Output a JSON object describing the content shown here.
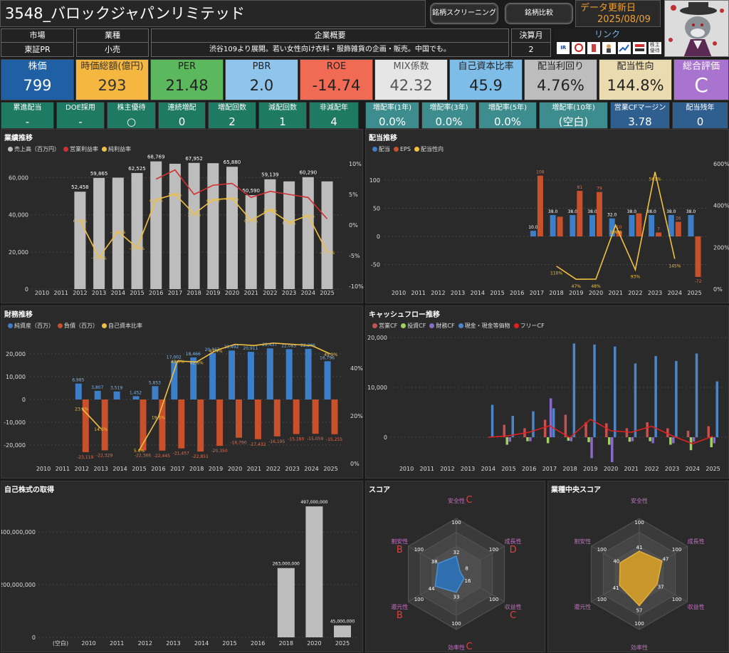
{
  "header": {
    "title": "3548_バロックジャパンリミテッド",
    "screening_button": "銘柄スクリーニング",
    "compare_button": "銘柄比較",
    "update_label": "データ更新日",
    "update_date": "2025/08/09"
  },
  "info": {
    "market_label": "市場",
    "market_value": "東証PR",
    "industry_label": "業種",
    "industry_value": "小売",
    "summary_label": "企業概要",
    "summary_value": "渋谷109より展開。若い女性向け衣料・服飾雑貨の企画・販売。中国でも。",
    "fiscal_label": "決算月",
    "fiscal_value": "2",
    "links_label": "リンク",
    "links": [
      "IR BANK",
      "Kabutan",
      "Minkabu",
      "Yahoo",
      "Kabuyoho",
      "株主優待"
    ]
  },
  "kpis": [
    {
      "label": "株価",
      "value": "799",
      "bg": "#1f5fa3",
      "fg": "#ffffff"
    },
    {
      "label": "時価総額(億円)",
      "value": "293",
      "bg": "#f5b73f",
      "fg": "#333333"
    },
    {
      "label": "PER",
      "value": "21.48",
      "bg": "#5cb85c",
      "fg": "#222222"
    },
    {
      "label": "PBR",
      "value": "2.0",
      "bg": "#8fc5ec",
      "fg": "#222222"
    },
    {
      "label": "ROE",
      "value": "-14.74",
      "bg": "#f16b54",
      "fg": "#222222"
    },
    {
      "label": "MIX係数",
      "value": "42.32",
      "bg": "#e6e6e6",
      "fg": "#555555"
    },
    {
      "label": "自己資本比率",
      "value": "45.9",
      "bg": "#7fbde9",
      "fg": "#222222"
    },
    {
      "label": "配当利回り",
      "value": "4.76%",
      "bg": "#bdbdbd",
      "fg": "#222222"
    },
    {
      "label": "配当性向",
      "value": "144.8%",
      "bg": "#eadbb0",
      "fg": "#222222"
    },
    {
      "label": "総合評価",
      "value": "C",
      "bg": "#a874cf",
      "fg": "#ffffff"
    }
  ],
  "metrics": [
    {
      "label": "累進配当",
      "value": "-",
      "bg": "#1f7a63"
    },
    {
      "label": "DOE採用",
      "value": "-",
      "bg": "#1f7a63"
    },
    {
      "label": "株主優待",
      "value": "○",
      "bg": "#1f7a63"
    },
    {
      "label": "連続増配",
      "value": "0",
      "bg": "#1f7a63"
    },
    {
      "label": "増配回数",
      "value": "2",
      "bg": "#1f7a63"
    },
    {
      "label": "減配回数",
      "value": "1",
      "bg": "#1f7a63"
    },
    {
      "label": "非減配年",
      "value": "4",
      "bg": "#1f7a63"
    },
    {
      "label": "増配率(1年)",
      "value": "0.0%",
      "bg": "#3d8c8e"
    },
    {
      "label": "増配率(3年)",
      "value": "0.0%",
      "bg": "#3d8c8e"
    },
    {
      "label": "増配率(5年)",
      "value": "0.0%",
      "bg": "#3d8c8e"
    },
    {
      "label": "増配率(10年)",
      "value": "(空白)",
      "bg": "#3d8c8e"
    },
    {
      "label": "営業CFマージン",
      "value": "3.78",
      "bg": "#2f5f8f"
    },
    {
      "label": "配当残年",
      "value": "0",
      "bg": "#2f5f8f"
    }
  ],
  "panels": {
    "performance": "業績推移",
    "dividend": "配当推移",
    "financial": "財務推移",
    "cashflow": "キャッシュフロー推移",
    "buyback": "自己株式の取得",
    "score": "スコア",
    "industry_score": "業種中央スコア"
  },
  "chart_data": [
    {
      "id": "performance",
      "type": "bar",
      "x": [
        "2010",
        "2011",
        "2012",
        "2013",
        "2014",
        "2015",
        "2016",
        "2017",
        "2018",
        "2019",
        "2020",
        "2021",
        "2022",
        "2023",
        "2024",
        "2025"
      ],
      "series": [
        {
          "name": "売上高（百万円）",
          "values": [
            null,
            null,
            52458,
            59865,
            null,
            62525,
            68769,
            null,
            67952,
            null,
            65880,
            50590,
            59139,
            null,
            60290,
            null
          ]
        },
        {
          "name": "営業利益率",
          "values": [
            null,
            null,
            null,
            null,
            null,
            null,
            7.5,
            9.0,
            5.0,
            6.5,
            6.8,
            4.5,
            5.5,
            5.0,
            4.5,
            1.0
          ]
        },
        {
          "name": "純利益率",
          "values": [
            null,
            null,
            0.78,
            -5.31,
            -1.04,
            -3.74,
            4.14,
            5.05,
            1.82,
            4.14,
            4.36,
            0.74,
            2.49,
            0.41,
            1.57,
            -4.43
          ]
        }
      ],
      "bar_labels": [
        "",
        "",
        "52,458",
        "59,865",
        "",
        "62,525",
        "68,769",
        "",
        "67,952",
        "",
        "65,880",
        "50,590",
        "59,139",
        "",
        "60,290",
        ""
      ],
      "line_labels": [
        "",
        "",
        "0.78%",
        "-5.31%",
        "-1.04%",
        "-3.74%",
        "4.14%",
        "5.05%",
        "1.82%",
        "4.14%",
        "4.36%",
        "0.74%",
        "2.49%",
        "0.41%",
        "1.57%",
        "-4.43%"
      ],
      "yticks_left": [
        "0",
        "20,000",
        "40,000",
        "60,000"
      ],
      "yticks_right": [
        "-10%",
        "-5%",
        "0%",
        "5%",
        "10%"
      ]
    },
    {
      "id": "dividend",
      "type": "bar",
      "x": [
        "2010",
        "2011",
        "2012",
        "2013",
        "2014",
        "2015",
        "2016",
        "2017",
        "2018",
        "2019",
        "2020",
        "2021",
        "2022",
        "2023",
        "2024",
        "2025"
      ],
      "series": [
        {
          "name": "配当",
          "values": [
            null,
            null,
            null,
            null,
            null,
            null,
            null,
            10,
            38,
            38,
            38,
            32,
            38,
            38,
            38,
            38
          ]
        },
        {
          "name": "EPS",
          "values": [
            null,
            null,
            null,
            null,
            null,
            null,
            null,
            108,
            35,
            81,
            79,
            10,
            41,
            7,
            26,
            -72
          ]
        },
        {
          "name": "配当性向",
          "values": [
            null,
            null,
            null,
            null,
            null,
            null,
            null,
            null,
            110,
            47,
            48,
            306,
            93,
            561,
            145,
            null
          ]
        }
      ],
      "bar_labels_div": [
        "",
        "",
        "",
        "",
        "",
        "",
        "",
        "10.0",
        "38.0",
        "38.0",
        "38.0",
        "32.0",
        "38.0",
        "38.0",
        "38.0",
        "38.0"
      ],
      "bar_labels_eps": [
        "",
        "",
        "",
        "",
        "",
        "",
        "",
        "108",
        "",
        "81",
        "79",
        "10",
        "",
        "7",
        "26",
        "-72"
      ],
      "line_labels": [
        "",
        "",
        "",
        "",
        "",
        "",
        "",
        "",
        "110%",
        "47%",
        "48%",
        "306%",
        "93%",
        "561%",
        "145%",
        ""
      ],
      "yticks_left": [
        "-50",
        "0",
        "50",
        "100"
      ],
      "yticks_right": [
        "0%",
        "200%",
        "400%",
        "600%"
      ]
    },
    {
      "id": "financial",
      "type": "bar",
      "x": [
        "2010",
        "2011",
        "2012",
        "2013",
        "2014",
        "2015",
        "2016",
        "2017",
        "2018",
        "2019",
        "2020",
        "2021",
        "2022",
        "2023",
        "2024",
        "2025"
      ],
      "series": [
        {
          "name": "純資産（百万）",
          "values": [
            null,
            null,
            6985,
            3807,
            3519,
            1452,
            5853,
            17002,
            18466,
            20367,
            21492,
            20911,
            22437,
            22085,
            22206,
            16796
          ]
        },
        {
          "name": "負債（百万）",
          "values": [
            null,
            null,
            -23119,
            -22329,
            null,
            -22366,
            -22445,
            -21457,
            -22851,
            -20350,
            -16790,
            -17432,
            -16195,
            -15160,
            -15059,
            -15255
          ]
        },
        {
          "name": "自己資本比率",
          "values": [
            null,
            null,
            23.2,
            14.6,
            null,
            5.6,
            19.5,
            43.0,
            42.6,
            47.4,
            null,
            null,
            null,
            null,
            null,
            45.9
          ]
        }
      ],
      "bar_labels_pos": [
        "",
        "",
        "6,985",
        "3,807",
        "3,519",
        "1,452",
        "5,853",
        "17,002",
        "18,466",
        "20,367",
        "21,492",
        "20,911",
        "22,437",
        "22,085",
        "22,206",
        "16,796"
      ],
      "bar_labels_neg": [
        "",
        "",
        "-23,119",
        "-22,329",
        "",
        "-22,366",
        "-22,445",
        "-21,457",
        "-22,851",
        "-20,350",
        "-16,790",
        "-17,432",
        "-16,195",
        "-15,160",
        "-15,059",
        "-15,255"
      ],
      "line_labels": [
        "",
        "",
        "23.2%",
        "14.6%",
        "",
        "5.6%",
        "19.5%",
        "43.0%",
        "42.6%",
        "47.4%",
        "",
        "",
        "",
        "",
        "",
        "45.9%"
      ],
      "yticks_left": [
        "-20,000",
        "-10,000",
        "0",
        "10,000",
        "20,000"
      ],
      "yticks_right": [
        "0%",
        "20%",
        "40%"
      ]
    },
    {
      "id": "cashflow",
      "type": "bar",
      "x": [
        "2010",
        "2011",
        "2012",
        "2013",
        "2014",
        "2015",
        "2016",
        "2017",
        "2018",
        "2019",
        "2020",
        "2021",
        "2022",
        "2023",
        "2024",
        "2025"
      ],
      "series": [
        {
          "name": "営業CF",
          "values": [
            null,
            null,
            null,
            null,
            null,
            2500,
            1800,
            3500,
            4500,
            3000,
            2800,
            1800,
            3000,
            1800,
            1300,
            2200
          ]
        },
        {
          "name": "投資CF",
          "values": [
            null,
            null,
            null,
            null,
            null,
            -1500,
            -800,
            -1200,
            -700,
            -1000,
            -1500,
            -900,
            -800,
            -1500,
            -2600,
            -2000
          ]
        },
        {
          "name": "財務CF",
          "values": [
            null,
            null,
            null,
            null,
            null,
            -900,
            -800,
            7800,
            -800,
            -4200,
            -5000,
            -800,
            -1200,
            -1200,
            -900,
            -1200
          ]
        },
        {
          "name": "現金・現金等価物",
          "values": [
            null,
            null,
            null,
            null,
            6500,
            4300,
            5200,
            5800,
            18800,
            18600,
            18200,
            14800,
            16300,
            15300,
            16800,
            11200
          ]
        },
        {
          "name": "フリーCF",
          "values": [
            null,
            null,
            null,
            null,
            0,
            300,
            1000,
            2300,
            -100,
            3600,
            1300,
            1000,
            2200,
            300,
            -1300,
            200
          ]
        }
      ],
      "yticks_left": [
        "0",
        "10,000",
        "20,000"
      ]
    },
    {
      "id": "buyback",
      "type": "bar",
      "categories": [
        "(空白)",
        "2010",
        "2011",
        "2012",
        "2013",
        "2014",
        "2015",
        "2016",
        "2018",
        "2020",
        "2025"
      ],
      "values": [
        0,
        0,
        0,
        0,
        0,
        0,
        0,
        0,
        263000000,
        497000000,
        45000000
      ],
      "bar_labels": [
        "",
        "",
        "",
        "",
        "",
        "",
        "",
        "",
        "263,000,000",
        "497,000,000",
        "45,000,000"
      ],
      "yticks_left": [
        "0",
        "200,000,000",
        "400,000,000"
      ]
    },
    {
      "id": "score",
      "type": "radar",
      "axes": [
        "安全性",
        "成長性",
        "収益性",
        "効率性",
        "還元性",
        "割安性"
      ],
      "values": [
        32,
        8,
        16,
        33,
        44,
        38
      ],
      "grades": [
        "C",
        "D",
        "C",
        "C",
        "B",
        "B"
      ],
      "max_label": "100"
    },
    {
      "id": "industry_score",
      "type": "radar",
      "axes": [
        "安全性",
        "成長性",
        "収益性",
        "効率性",
        "還元性",
        "割安性"
      ],
      "values": [
        41,
        47,
        37,
        57,
        41,
        40
      ],
      "max_label": "100"
    }
  ]
}
